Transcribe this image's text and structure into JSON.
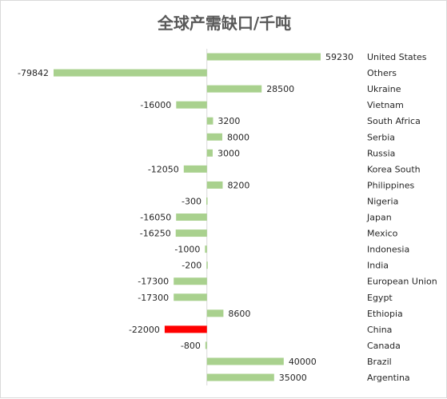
{
  "chart_data": {
    "type": "bar",
    "orientation": "horizontal",
    "title": "全球产需缺口/千吨",
    "xlabel": "",
    "ylabel": "",
    "xlim": [
      -79842,
      59230
    ],
    "grid": false,
    "legend": "none",
    "bar_color": "#a9d18e",
    "highlight_color": "#ff0000",
    "highlight_category": "China",
    "categories": [
      "United States",
      "Others",
      "Ukraine",
      "Vietnam",
      "South Africa",
      "Serbia",
      "Russia",
      "Korea South",
      "Philippines",
      "Nigeria",
      "Japan",
      "Mexico",
      "Indonesia",
      "India",
      "European Union",
      "Egypt",
      "Ethiopia",
      "China",
      "Canada",
      "Brazil",
      "Argentina"
    ],
    "values": [
      59230,
      -79842,
      28500,
      -16000,
      3200,
      8000,
      3000,
      -12050,
      8200,
      -300,
      -16050,
      -16250,
      -1000,
      -200,
      -17300,
      -17300,
      8600,
      -22000,
      -800,
      40000,
      35000
    ]
  }
}
